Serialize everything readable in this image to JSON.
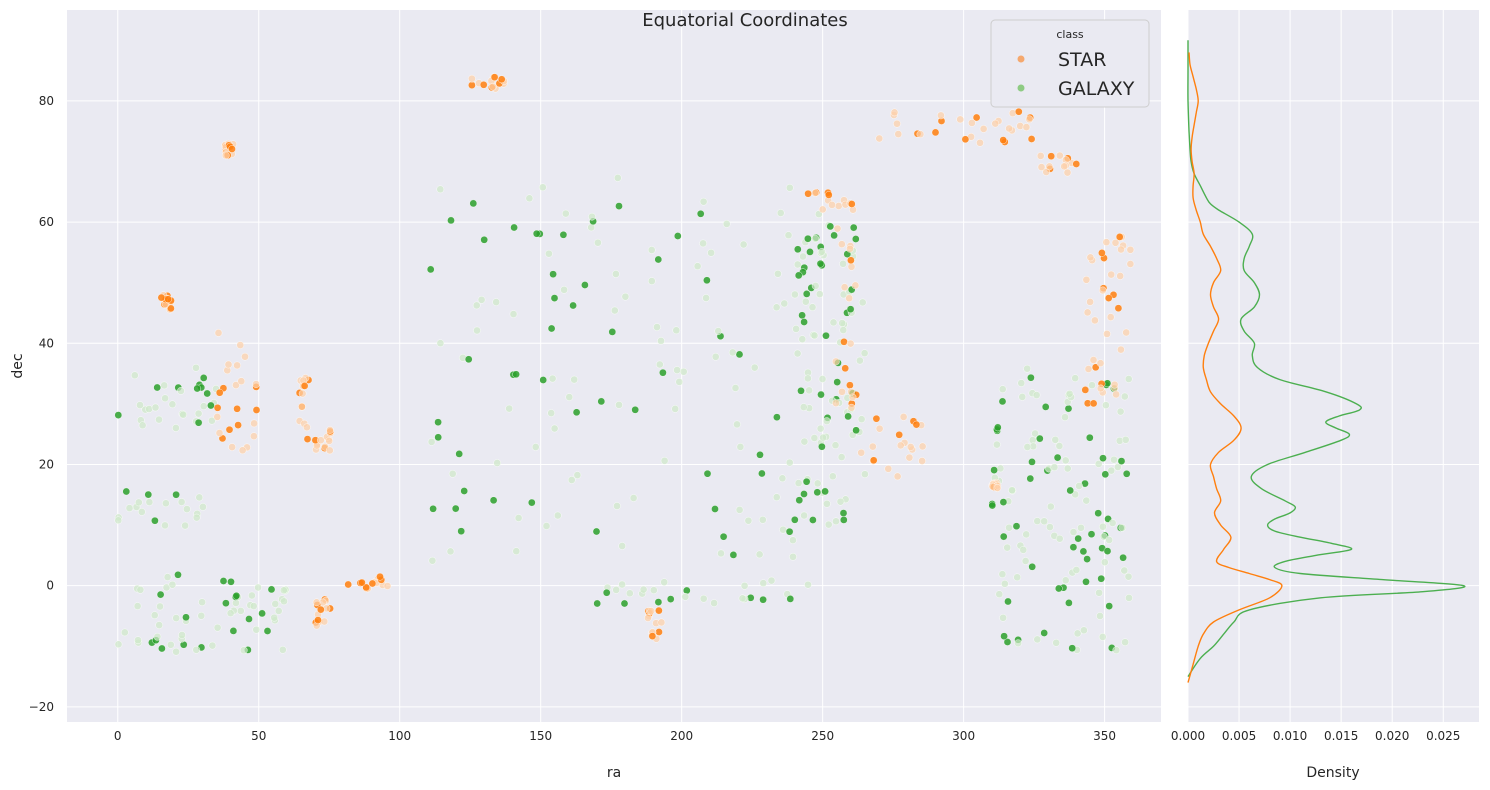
{
  "chart_data": [
    {
      "type": "scatter",
      "title": "Equatorial Coordinates",
      "xlabel": "ra",
      "ylabel": "dec",
      "xlim": [
        -18,
        370
      ],
      "ylim": [
        -22.5,
        95
      ],
      "xticks": [
        0,
        50,
        100,
        150,
        200,
        250,
        300,
        350
      ],
      "yticks": [
        -20,
        0,
        20,
        40,
        60,
        80
      ],
      "ytick_labels": [
        "−20",
        "0",
        "20",
        "40",
        "60",
        "80"
      ],
      "grid": true,
      "legend": {
        "title": "class",
        "placement": "upper-right",
        "entries": [
          {
            "label": "STAR",
            "color": "#f5a86e"
          },
          {
            "label": "GALAXY",
            "color": "#8ecb83"
          }
        ]
      },
      "series": [
        {
          "name": "STAR",
          "color": "#ff7f0e",
          "regions": [
            {
              "ra": [
                124,
                137
              ],
              "dec": [
                82,
                84
              ]
            },
            {
              "ra": [
                38,
                41
              ],
              "dec": [
                71,
                73
              ]
            },
            {
              "ra": [
                15,
                19
              ],
              "dec": [
                45.5,
                48
              ]
            },
            {
              "ra": [
                35,
                50
              ],
              "dec": [
                22,
                42
              ]
            },
            {
              "ra": [
                63,
                68
              ],
              "dec": [
                24,
                34.5
              ]
            },
            {
              "ra": [
                70,
                76
              ],
              "dec": [
                22,
                26
              ]
            },
            {
              "ra": [
                80,
                96
              ],
              "dec": [
                -0.5,
                1.5
              ]
            },
            {
              "ra": [
                70,
                76
              ],
              "dec": [
                -7,
                -2
              ]
            },
            {
              "ra": [
                270,
                330
              ],
              "dec": [
                73,
                79
              ]
            },
            {
              "ra": [
                327,
                340
              ],
              "dec": [
                68,
                71
              ]
            },
            {
              "ra": [
                343,
                360
              ],
              "dec": [
                30,
                58
              ]
            },
            {
              "ra": [
                244,
                262
              ],
              "dec": [
                62,
                65
              ]
            },
            {
              "ra": [
                254,
                262
              ],
              "dec": [
                28,
                60
              ]
            },
            {
              "ra": [
                188,
                193
              ],
              "dec": [
                -9,
                -4
              ]
            },
            {
              "ra": [
                310,
                312
              ],
              "dec": [
                16,
                17
              ]
            },
            {
              "ra": [
                262,
                286
              ],
              "dec": [
                18,
                28
              ]
            }
          ]
        },
        {
          "name": "GALAXY",
          "color": "#2ca02c",
          "regions": [
            {
              "ra": [
                0,
                35
              ],
              "dec": [
                25,
                36
              ]
            },
            {
              "ra": [
                0,
                35
              ],
              "dec": [
                9,
                16
              ]
            },
            {
              "ra": [
                0,
                60
              ],
              "dec": [
                -11,
                2
              ]
            },
            {
              "ra": [
                110,
                250
              ],
              "dec": [
                4,
                68
              ]
            },
            {
              "ra": [
                170,
                250
              ],
              "dec": [
                -3,
                1
              ]
            },
            {
              "ra": [
                310,
                360
              ],
              "dec": [
                -11,
                36
              ]
            },
            {
              "ra": [
                240,
                265
              ],
              "dec": [
                10,
                60
              ]
            }
          ]
        }
      ]
    },
    {
      "type": "line",
      "xlabel": "Density",
      "ylabel": "",
      "xlim": [
        0,
        0.0285
      ],
      "ylim": [
        -22.5,
        95
      ],
      "xticks": [
        0.0,
        0.005,
        0.01,
        0.015,
        0.02,
        0.025
      ],
      "xtick_labels": [
        "0.000",
        "0.005",
        "0.010",
        "0.015",
        "0.020",
        "0.025"
      ],
      "grid": true,
      "series": [
        {
          "name": "GALAXY",
          "color": "#4caf50",
          "dec": [
            -15,
            -12,
            -10,
            -8,
            -6,
            -4,
            -2,
            -1,
            0,
            1,
            2,
            3,
            4,
            5,
            6,
            7,
            8,
            9,
            10,
            11,
            12,
            13,
            14,
            16,
            18,
            20,
            22,
            24,
            25,
            26,
            27,
            28,
            29,
            30,
            32,
            34,
            36,
            38,
            40,
            42,
            44,
            46,
            48,
            50,
            52,
            54,
            56,
            58,
            60,
            62,
            63,
            64,
            66,
            68,
            70,
            72,
            75,
            80,
            85,
            90
          ],
          "density": [
            0.0,
            0.0012,
            0.0025,
            0.0035,
            0.0045,
            0.006,
            0.013,
            0.023,
            0.027,
            0.019,
            0.011,
            0.0085,
            0.0095,
            0.0125,
            0.016,
            0.014,
            0.011,
            0.0085,
            0.0078,
            0.0085,
            0.01,
            0.0105,
            0.0095,
            0.0072,
            0.0062,
            0.0078,
            0.0115,
            0.015,
            0.0158,
            0.0145,
            0.0135,
            0.0148,
            0.0168,
            0.0165,
            0.0135,
            0.009,
            0.0068,
            0.0063,
            0.0065,
            0.0055,
            0.0052,
            0.0065,
            0.007,
            0.0065,
            0.0055,
            0.0055,
            0.006,
            0.0063,
            0.005,
            0.003,
            0.0022,
            0.0018,
            0.0012,
            0.0006,
            0.0003,
            0.0002,
            0.0001,
            0.0,
            0.0,
            0.0
          ]
        },
        {
          "name": "STAR",
          "color": "#ff7f0e",
          "dec": [
            -16,
            -13,
            -10,
            -8,
            -6,
            -4,
            -2,
            0,
            1,
            2,
            3,
            4,
            6,
            8,
            10,
            12,
            14,
            16,
            18,
            20,
            22,
            24,
            26,
            28,
            30,
            32,
            34,
            36,
            38,
            40,
            42,
            44,
            46,
            48,
            50,
            52,
            54,
            56,
            58,
            60,
            62,
            64,
            66,
            68,
            70,
            72,
            74,
            76,
            78,
            80,
            82,
            84,
            86,
            88
          ],
          "density": [
            0.0,
            0.0005,
            0.001,
            0.0015,
            0.0025,
            0.005,
            0.008,
            0.0092,
            0.008,
            0.006,
            0.004,
            0.0028,
            0.0035,
            0.0042,
            0.0032,
            0.0026,
            0.0032,
            0.0028,
            0.0025,
            0.0022,
            0.003,
            0.0045,
            0.0052,
            0.0045,
            0.0032,
            0.0022,
            0.0018,
            0.0015,
            0.0016,
            0.002,
            0.0025,
            0.003,
            0.0025,
            0.0022,
            0.0025,
            0.0032,
            0.0028,
            0.0022,
            0.0015,
            0.0012,
            0.0008,
            0.0005,
            0.0005,
            0.0006,
            0.0004,
            0.0003,
            0.0004,
            0.0006,
            0.0008,
            0.001,
            0.0008,
            0.0005,
            0.0002,
            0.0001
          ]
        }
      ]
    }
  ]
}
